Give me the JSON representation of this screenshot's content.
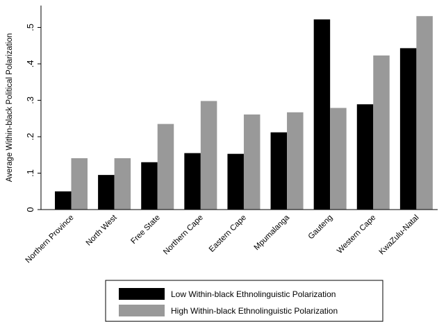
{
  "chart_data": {
    "type": "bar",
    "categories": [
      "Northern Province",
      "North West",
      "Free State",
      "Northern Cape",
      "Eastern Cape",
      "Mpumalanga",
      "Gauteng",
      "Western Cape",
      "KwaZulu-Natal"
    ],
    "series": [
      {
        "name": "Low Within-black Ethnolinguistic Polarization",
        "color": "#000000",
        "values": [
          0.05,
          0.095,
          0.13,
          0.155,
          0.153,
          0.212,
          0.522,
          0.289,
          0.443
        ]
      },
      {
        "name": "High Within-black Ethnolinguistic Polarization",
        "color": "#999999",
        "values": [
          0.141,
          0.141,
          0.235,
          0.298,
          0.261,
          0.267,
          0.279,
          0.423,
          0.531
        ]
      }
    ],
    "title": "",
    "xlabel": "",
    "ylabel": "Average Within-black Political Polarization",
    "ylim": [
      0,
      0.56
    ],
    "yticks": [
      0,
      0.1,
      0.2,
      0.3,
      0.4,
      0.5
    ],
    "ytick_labels": [
      "0",
      ".1",
      ".2",
      ".3",
      ".4",
      ".5"
    ],
    "grid": false,
    "legend_position": "bottom"
  }
}
